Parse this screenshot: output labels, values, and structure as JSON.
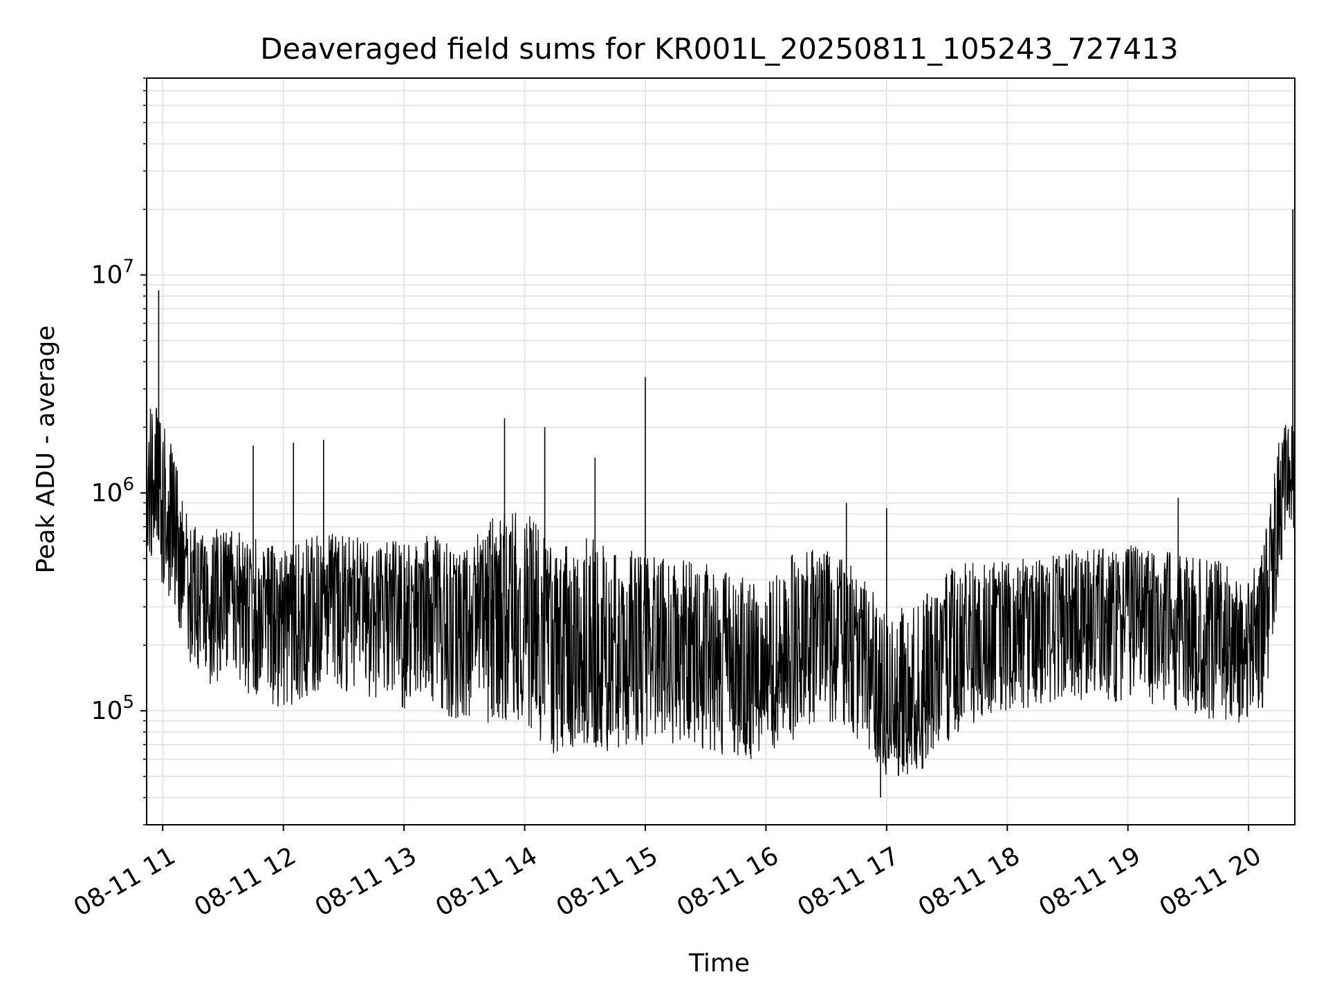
{
  "chart_data": {
    "type": "line",
    "title": "Deaveraged field sums for KR001L_20250811_105243_727413",
    "xlabel": "Time",
    "ylabel": "Peak ADU - average",
    "y_scale": "log",
    "ylim": [
      30000,
      80000000
    ],
    "xlim": [
      "2025-08-11 10:52",
      "2025-08-11 20:23"
    ],
    "x_ticks": [
      {
        "label": "08-11 11",
        "value": "2025-08-11 11:00"
      },
      {
        "label": "08-11 12",
        "value": "2025-08-11 12:00"
      },
      {
        "label": "08-11 13",
        "value": "2025-08-11 13:00"
      },
      {
        "label": "08-11 14",
        "value": "2025-08-11 14:00"
      },
      {
        "label": "08-11 15",
        "value": "2025-08-11 15:00"
      },
      {
        "label": "08-11 16",
        "value": "2025-08-11 16:00"
      },
      {
        "label": "08-11 17",
        "value": "2025-08-11 17:00"
      },
      {
        "label": "08-11 18",
        "value": "2025-08-11 18:00"
      },
      {
        "label": "08-11 19",
        "value": "2025-08-11 19:00"
      },
      {
        "label": "08-11 20",
        "value": "2025-08-11 20:00"
      }
    ],
    "y_ticks": [
      {
        "base": "10",
        "exp": "5",
        "value": 100000
      },
      {
        "base": "10",
        "exp": "6",
        "value": 1000000
      },
      {
        "base": "10",
        "exp": "7",
        "value": 10000000
      }
    ],
    "grid": true,
    "line_color": "#000000",
    "grid_color": "#e6e6e6",
    "series": [
      {
        "x": [
          "2025-08-11 10:52",
          "2025-08-11 10:55",
          "2025-08-11 10:58",
          "2025-08-11 11:02",
          "2025-08-11 11:06",
          "2025-08-11 11:10",
          "2025-08-11 11:15",
          "2025-08-11 11:20",
          "2025-08-11 11:30",
          "2025-08-11 11:40",
          "2025-08-11 11:50",
          "2025-08-11 12:00",
          "2025-08-11 12:15",
          "2025-08-11 12:30",
          "2025-08-11 12:45",
          "2025-08-11 13:00",
          "2025-08-11 13:15",
          "2025-08-11 13:30",
          "2025-08-11 13:45",
          "2025-08-11 14:00",
          "2025-08-11 14:15",
          "2025-08-11 14:30",
          "2025-08-11 14:45",
          "2025-08-11 15:00",
          "2025-08-11 15:15",
          "2025-08-11 15:30",
          "2025-08-11 15:45",
          "2025-08-11 16:00",
          "2025-08-11 16:15",
          "2025-08-11 16:30",
          "2025-08-11 16:45",
          "2025-08-11 17:00",
          "2025-08-11 17:15",
          "2025-08-11 17:30",
          "2025-08-11 17:45",
          "2025-08-11 18:00",
          "2025-08-11 18:15",
          "2025-08-11 18:30",
          "2025-08-11 18:45",
          "2025-08-11 19:00",
          "2025-08-11 19:15",
          "2025-08-11 19:30",
          "2025-08-11 19:45",
          "2025-08-11 20:00",
          "2025-08-11 20:05",
          "2025-08-11 20:10",
          "2025-08-11 20:15",
          "2025-08-11 20:20",
          "2025-08-11 20:23"
        ],
        "y": [
          1000000,
          900000,
          800000,
          700000,
          600000,
          500000,
          420000,
          400000,
          380000,
          360000,
          330000,
          310000,
          340000,
          350000,
          320000,
          300000,
          330000,
          250000,
          330000,
          330000,
          180000,
          200000,
          180000,
          190000,
          180000,
          160000,
          140000,
          130000,
          200000,
          300000,
          200000,
          100000,
          100000,
          180000,
          220000,
          250000,
          260000,
          280000,
          300000,
          300000,
          280000,
          260000,
          220000,
          140000,
          250000,
          400000,
          900000,
          1300000,
          1000000
        ],
        "upper": [
          2000000,
          3000000,
          2500000,
          2000000,
          1500000,
          900000,
          750000,
          650000,
          700000,
          650000,
          600000,
          550000,
          650000,
          650000,
          600000,
          600000,
          650000,
          550000,
          800000,
          850000,
          550000,
          650000,
          550000,
          550000,
          500000,
          480000,
          420000,
          380000,
          560000,
          550000,
          450000,
          300000,
          300000,
          450000,
          500000,
          500000,
          500000,
          550000,
          550000,
          580000,
          550000,
          550000,
          500000,
          400000,
          500000,
          800000,
          1800000,
          2300000,
          2000000
        ],
        "lower": [
          600000,
          450000,
          400000,
          350000,
          300000,
          200000,
          150000,
          130000,
          120000,
          120000,
          110000,
          100000,
          120000,
          120000,
          110000,
          100000,
          110000,
          80000,
          90000,
          90000,
          60000,
          65000,
          65000,
          70000,
          70000,
          65000,
          60000,
          60000,
          75000,
          90000,
          75000,
          50000,
          50000,
          70000,
          90000,
          100000,
          100000,
          110000,
          110000,
          110000,
          100000,
          95000,
          90000,
          85000,
          90000,
          130000,
          350000,
          700000,
          600000
        ],
        "spikes": [
          {
            "x": "2025-08-11 10:58",
            "y": 8500000
          },
          {
            "x": "2025-08-11 11:45",
            "y": 1650000
          },
          {
            "x": "2025-08-11 12:05",
            "y": 1700000
          },
          {
            "x": "2025-08-11 12:20",
            "y": 1750000
          },
          {
            "x": "2025-08-11 13:50",
            "y": 2200000
          },
          {
            "x": "2025-08-11 14:10",
            "y": 2000000
          },
          {
            "x": "2025-08-11 14:35",
            "y": 1450000
          },
          {
            "x": "2025-08-11 15:00",
            "y": 3400000
          },
          {
            "x": "2025-08-11 16:40",
            "y": 900000
          },
          {
            "x": "2025-08-11 16:57",
            "y": 40000
          },
          {
            "x": "2025-08-11 17:00",
            "y": 850000
          },
          {
            "x": "2025-08-11 19:25",
            "y": 950000
          },
          {
            "x": "2025-08-11 20:22",
            "y": 20000000
          }
        ]
      }
    ]
  }
}
